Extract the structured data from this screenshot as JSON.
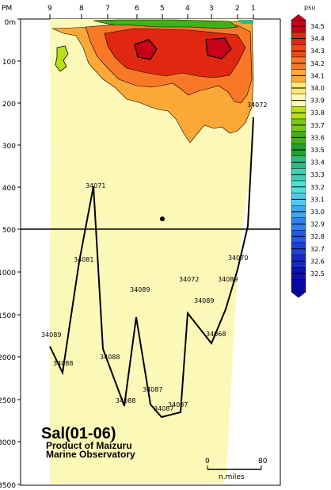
{
  "chart_data": {
    "type": "heatmap",
    "title": "Sal(01-06)",
    "subtitle_lines": [
      "Product of Maizuru",
      "Marine Observatory"
    ],
    "x_axis_label": "PM",
    "station_ticks": [
      "9",
      "8",
      "7",
      "6",
      "5",
      "4",
      "3",
      "2",
      "1"
    ],
    "y_tick_labels": [
      "0m",
      "100",
      "200",
      "300",
      "400",
      "500",
      "1000",
      "1500",
      "2000",
      "2500",
      "3000",
      "3500"
    ],
    "y_scale_note": "0-500 m upper panel, 500-3500 m lower panel",
    "colorbar": {
      "unit": "psu",
      "levels": [
        "34.5",
        "34.4",
        "34.3",
        "34.2",
        "34.1",
        "34.0",
        "33.9",
        "33.8",
        "33.7",
        "33.6",
        "33.5",
        "33.4",
        "33.3",
        "33.2",
        "33.1",
        "33.0",
        "32.9",
        "32.8",
        "32.7",
        "32.6",
        "32.5"
      ],
      "colors": [
        "#c80018",
        "#e02810",
        "#f04818",
        "#f87828",
        "#fca838",
        "#fce878",
        "#fcf8b8",
        "#b8e018",
        "#78c818",
        "#40b018",
        "#20a030",
        "#30b880",
        "#40d0b0",
        "#50e0d8",
        "#50c8f0",
        "#40a8f0",
        "#3080f0",
        "#2858e8",
        "#2040d8",
        "#1828c8",
        "#1010b0",
        "#0808a0"
      ]
    },
    "deepest_sample_labels": [
      {
        "value": "34089",
        "station": "9"
      },
      {
        "value": "34088",
        "station": "9"
      },
      {
        "value": "34071",
        "station": "8"
      },
      {
        "value": "34081",
        "station": "8"
      },
      {
        "value": "34088",
        "station": "7"
      },
      {
        "value": "34088",
        "station": "6"
      },
      {
        "value": "34089",
        "station": "6"
      },
      {
        "value": "34087",
        "station": "5"
      },
      {
        "value": "34087",
        "station": "5"
      },
      {
        "value": "34087",
        "station": "4"
      },
      {
        "value": "34072",
        "station": "4"
      },
      {
        "value": "34089",
        "station": "4"
      },
      {
        "value": "34068",
        "station": "3"
      },
      {
        "value": "34089",
        "station": "3"
      },
      {
        "value": "34070",
        "station": "2"
      },
      {
        "value": "34072",
        "station": "1"
      }
    ],
    "scale_bar": {
      "start": "0",
      "end": "80",
      "unit": "n.miles"
    }
  }
}
